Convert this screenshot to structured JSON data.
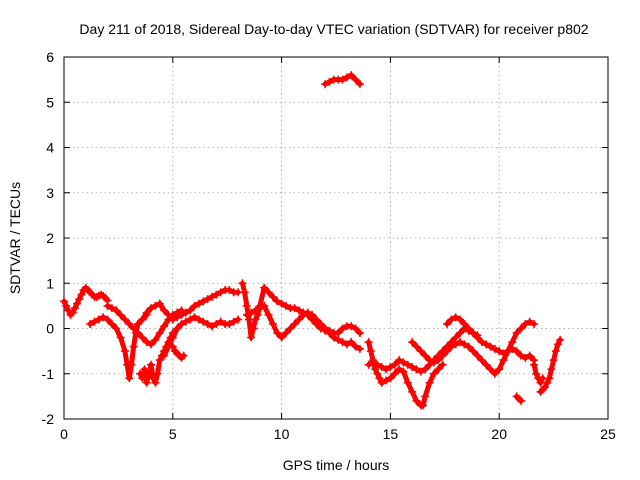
{
  "chart_data": {
    "type": "scatter",
    "title": "Day 211 of 2018, Sidereal Day-to-day VTEC variation (SDTVAR) for receiver p802",
    "xlabel": "GPS time / hours",
    "ylabel": "SDTVAR / TECUs",
    "xlim": [
      0,
      25
    ],
    "ylim": [
      -2,
      6
    ],
    "xticks": [
      0,
      5,
      10,
      15,
      20,
      25
    ],
    "yticks": [
      -2,
      -1,
      0,
      1,
      2,
      3,
      4,
      5,
      6
    ],
    "grid": true,
    "marker": "plus",
    "color": "#ff0000",
    "series": [
      {
        "name": "s1",
        "x": [
          0.0,
          0.1,
          0.2,
          0.3,
          0.4,
          0.5,
          0.6,
          0.7,
          0.8,
          0.9,
          1.0,
          1.1,
          1.2,
          1.3,
          1.4,
          1.5,
          1.6,
          1.7,
          1.8,
          1.9,
          2.0
        ],
        "y": [
          0.6,
          0.5,
          0.4,
          0.3,
          0.35,
          0.45,
          0.55,
          0.65,
          0.75,
          0.85,
          0.9,
          0.85,
          0.8,
          0.75,
          0.7,
          0.7,
          0.72,
          0.75,
          0.72,
          0.68,
          0.62
        ]
      },
      {
        "name": "s2",
        "x": [
          1.2,
          1.4,
          1.6,
          1.8,
          2.0,
          2.2,
          2.4,
          2.6,
          2.8,
          2.9,
          3.0,
          3.1,
          3.2,
          3.3,
          3.4,
          3.6,
          3.8
        ],
        "y": [
          0.1,
          0.15,
          0.2,
          0.25,
          0.2,
          0.1,
          0.0,
          -0.2,
          -0.5,
          -0.8,
          -1.1,
          -0.8,
          -0.4,
          -0.1,
          0.1,
          0.2,
          0.3
        ]
      },
      {
        "name": "s3",
        "x": [
          2.0,
          2.2,
          2.4,
          2.6,
          2.8,
          3.0,
          3.2,
          3.4,
          3.6,
          3.8,
          4.0,
          4.2,
          4.4,
          4.6,
          4.8,
          5.0,
          5.2,
          5.4
        ],
        "y": [
          0.5,
          0.45,
          0.4,
          0.3,
          0.2,
          0.1,
          0.0,
          -0.1,
          -0.2,
          -0.3,
          -0.35,
          -0.25,
          -0.1,
          0.05,
          0.2,
          0.3,
          0.35,
          0.4
        ]
      },
      {
        "name": "s4",
        "x": [
          3.5,
          3.6,
          3.7,
          3.8,
          3.9,
          4.0,
          4.1,
          4.2,
          4.3,
          4.4,
          4.5,
          4.6,
          4.7,
          4.8,
          4.9,
          5.0
        ],
        "y": [
          -1.0,
          -1.1,
          -0.9,
          -1.2,
          -1.0,
          -0.8,
          -1.1,
          -1.2,
          -1.0,
          -0.7,
          -0.6,
          -0.5,
          -0.4,
          -0.3,
          -0.2,
          -0.1
        ]
      },
      {
        "name": "s5",
        "x": [
          3.4,
          3.6,
          3.8,
          4.0,
          4.2,
          4.4,
          4.6,
          4.8,
          5.0,
          5.2,
          5.4,
          5.6,
          5.8,
          6.0,
          6.2,
          6.4,
          6.6,
          6.8,
          7.0,
          7.2,
          7.4,
          7.6,
          7.8,
          8.0
        ],
        "y": [
          0.1,
          0.2,
          0.35,
          0.45,
          0.5,
          0.55,
          0.4,
          0.3,
          0.2,
          0.25,
          0.3,
          0.35,
          0.4,
          0.5,
          0.55,
          0.6,
          0.65,
          0.7,
          0.75,
          0.8,
          0.85,
          0.85,
          0.8,
          0.8
        ]
      },
      {
        "name": "s6",
        "x": [
          4.6,
          4.8,
          5.0,
          5.2,
          5.4,
          5.6,
          5.8,
          6.0,
          6.2,
          6.4,
          6.6,
          6.8,
          7.0,
          7.2,
          7.4,
          7.6,
          7.8,
          8.0
        ],
        "y": [
          -0.6,
          -0.4,
          -0.2,
          0.0,
          0.1,
          0.15,
          0.2,
          0.25,
          0.2,
          0.15,
          0.1,
          0.05,
          0.1,
          0.15,
          0.1,
          0.1,
          0.15,
          0.2
        ]
      },
      {
        "name": "s7",
        "x": [
          5.0,
          5.1,
          5.2,
          5.3,
          5.4,
          5.5
        ],
        "y": [
          -0.4,
          -0.5,
          -0.55,
          -0.6,
          -0.65,
          -0.6
        ]
      },
      {
        "name": "s8",
        "x": [
          8.2,
          8.3,
          8.4,
          8.5,
          8.6,
          8.7,
          8.8,
          8.9,
          9.0,
          9.2,
          9.4,
          9.6,
          9.8,
          10.0,
          10.2,
          10.4,
          10.6,
          10.8,
          11.0,
          11.2,
          11.4,
          11.6,
          11.8,
          12.0,
          12.2,
          12.4,
          12.6,
          12.8,
          13.0,
          13.2,
          13.4,
          13.6
        ],
        "y": [
          1.0,
          0.8,
          0.5,
          0.2,
          -0.2,
          0.0,
          0.2,
          0.3,
          0.5,
          0.9,
          0.8,
          0.7,
          0.6,
          0.55,
          0.5,
          0.45,
          0.45,
          0.4,
          0.35,
          0.3,
          0.2,
          0.1,
          0.0,
          0.0,
          -0.05,
          -0.1,
          -0.1,
          0.0,
          0.05,
          0.05,
          0.0,
          -0.1
        ]
      },
      {
        "name": "s9",
        "x": [
          8.4,
          8.6,
          8.8,
          9.0,
          9.2,
          9.4,
          9.6,
          9.8,
          10.0,
          10.2,
          10.4,
          10.6,
          10.8,
          11.0,
          11.2,
          11.4,
          11.6,
          11.8,
          12.0,
          12.2,
          12.4,
          12.6,
          12.8,
          13.0,
          13.2,
          13.4,
          13.6
        ],
        "y": [
          0.3,
          0.35,
          0.4,
          0.45,
          0.5,
          0.3,
          0.1,
          -0.1,
          -0.2,
          -0.1,
          0.0,
          0.1,
          0.2,
          0.3,
          0.35,
          0.3,
          0.2,
          0.1,
          -0.05,
          -0.1,
          -0.2,
          -0.25,
          -0.3,
          -0.35,
          -0.3,
          -0.4,
          -0.45
        ]
      },
      {
        "name": "s10",
        "x": [
          12.0,
          12.2,
          12.4,
          12.6,
          12.8,
          13.0,
          13.2,
          13.4,
          13.6
        ],
        "y": [
          5.4,
          5.45,
          5.5,
          5.5,
          5.5,
          5.55,
          5.6,
          5.5,
          5.4
        ]
      },
      {
        "name": "s11",
        "x": [
          14.0,
          14.1,
          14.2,
          14.3,
          14.4,
          14.5,
          14.6,
          14.8,
          15.0,
          15.2,
          15.4,
          15.6,
          15.8,
          16.0,
          16.2,
          16.4,
          16.5,
          16.6,
          16.8,
          17.0,
          17.2,
          17.4
        ],
        "y": [
          -0.3,
          -0.5,
          -0.7,
          -0.9,
          -1.0,
          -1.1,
          -1.2,
          -1.15,
          -1.1,
          -1.0,
          -0.9,
          -0.95,
          -1.2,
          -1.4,
          -1.6,
          -1.7,
          -1.7,
          -1.5,
          -1.2,
          -1.0,
          -0.9,
          -0.8
        ]
      },
      {
        "name": "s12",
        "x": [
          14.0,
          14.2,
          14.4,
          14.6,
          14.8,
          15.0,
          15.2,
          15.4,
          15.6,
          15.8,
          16.0,
          16.2,
          16.4,
          16.6,
          16.8,
          17.0,
          17.2,
          17.4,
          17.6,
          17.8,
          18.0,
          18.2,
          18.4,
          18.6,
          18.8,
          19.0
        ],
        "y": [
          -0.8,
          -0.75,
          -0.8,
          -0.85,
          -0.9,
          -0.85,
          -0.8,
          -0.7,
          -0.75,
          -0.8,
          -0.85,
          -0.9,
          -0.95,
          -0.9,
          -0.8,
          -0.7,
          -0.6,
          -0.5,
          -0.4,
          -0.3,
          -0.2,
          -0.1,
          0.0,
          -0.05,
          -0.1,
          -0.15
        ]
      },
      {
        "name": "s13",
        "x": [
          16.0,
          16.2,
          16.4,
          16.6,
          16.8,
          17.0,
          17.2,
          17.4,
          17.6,
          17.8,
          18.0,
          18.2,
          18.4,
          18.6,
          18.8,
          19.0,
          19.2,
          19.4,
          19.6,
          19.8,
          20.0,
          20.2,
          20.4,
          20.6,
          20.8,
          21.0,
          21.2,
          21.4,
          21.6
        ],
        "y": [
          -0.3,
          -0.4,
          -0.5,
          -0.6,
          -0.7,
          -0.75,
          -0.7,
          -0.6,
          -0.5,
          -0.4,
          -0.35,
          -0.3,
          -0.35,
          -0.4,
          -0.5,
          -0.6,
          -0.7,
          -0.8,
          -0.9,
          -1.0,
          -0.9,
          -0.7,
          -0.5,
          -0.3,
          -0.1,
          0.0,
          0.1,
          0.15,
          0.1
        ]
      },
      {
        "name": "s14",
        "x": [
          17.6,
          17.8,
          18.0,
          18.2,
          18.4,
          18.6,
          18.8,
          19.0,
          19.2,
          19.4,
          19.6,
          19.8,
          20.0,
          20.2,
          20.4,
          20.6,
          20.8,
          21.0,
          21.2,
          21.4,
          21.6
        ],
        "y": [
          0.1,
          0.2,
          0.25,
          0.2,
          0.1,
          0.0,
          -0.1,
          -0.2,
          -0.3,
          -0.35,
          -0.4,
          -0.45,
          -0.5,
          -0.55,
          -0.5,
          -0.45,
          -0.5,
          -0.6,
          -0.65,
          -0.6,
          -0.7
        ]
      },
      {
        "name": "s15",
        "x": [
          20.8,
          20.9,
          21.0
        ],
        "y": [
          -1.5,
          -1.55,
          -1.6
        ]
      },
      {
        "name": "s16",
        "x": [
          21.6,
          21.7,
          21.8,
          21.9,
          22.0
        ],
        "y": [
          -0.8,
          -1.0,
          -1.1,
          -1.2,
          -1.1
        ]
      },
      {
        "name": "s17",
        "x": [
          21.9,
          22.0,
          22.1,
          22.2,
          22.3,
          22.4,
          22.5,
          22.6,
          22.7,
          22.8
        ],
        "y": [
          -1.4,
          -1.35,
          -1.3,
          -1.2,
          -1.1,
          -0.9,
          -0.7,
          -0.5,
          -0.35,
          -0.25
        ]
      }
    ]
  }
}
